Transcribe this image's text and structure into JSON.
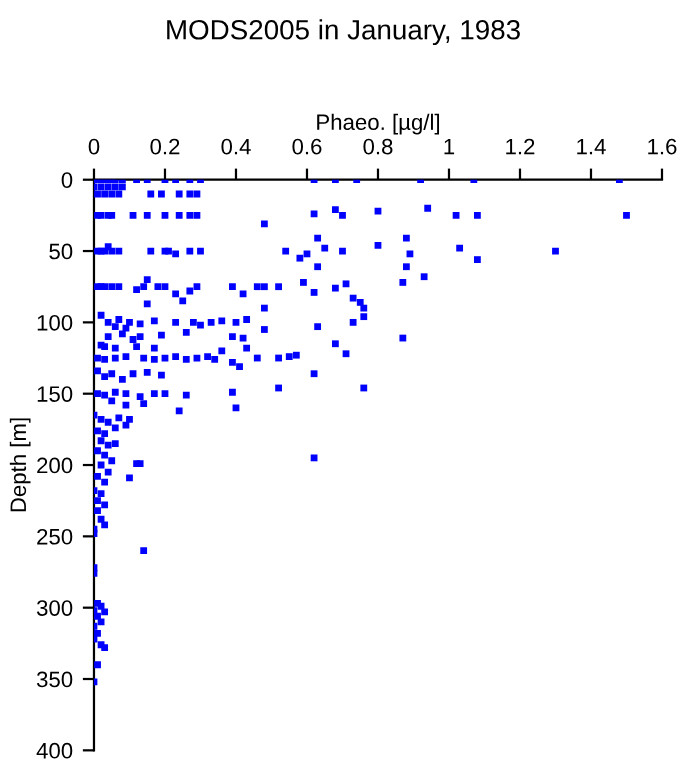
{
  "chart_data": {
    "type": "scatter",
    "title": "MODS2005 in January, 1983",
    "xlabel": "Phaeo. [µg/l]",
    "ylabel": "Depth [m]",
    "xlim": [
      0,
      1.6
    ],
    "xticks": [
      0,
      0.2,
      0.4,
      0.6,
      0.8,
      1,
      1.2,
      1.4,
      1.6
    ],
    "ylim": [
      400,
      0
    ],
    "yticks": [
      0,
      50,
      100,
      150,
      200,
      250,
      300,
      350,
      400
    ],
    "grid": false,
    "legend": false,
    "marker": "square",
    "series": [
      {
        "color": "#0000ff",
        "x": [
          0,
          0.01,
          0.02,
          0.03,
          0.04,
          0.05,
          0.06,
          0.08,
          0.12,
          0.15,
          0.2,
          0.23,
          0.27,
          0.3,
          0.62,
          0.68,
          0.74,
          0.92,
          1.07,
          1.48,
          0,
          0.02,
          0.04,
          0.06,
          0.08,
          0.01,
          0.03,
          0.05,
          0.07,
          0.16,
          0.19,
          0.24,
          0.27,
          0.29,
          0.01,
          0.02,
          0.04,
          0.05,
          0.11,
          0.15,
          0.2,
          0.24,
          0.27,
          0.29,
          0.48,
          0.62,
          0.68,
          0.7,
          0.8,
          0.94,
          1.02,
          1.08,
          1.5,
          0.01,
          0.02,
          0.03,
          0.05,
          0.04,
          0.07,
          0.16,
          0.2,
          0.21,
          0.23,
          0.27,
          0.3,
          0.54,
          0.58,
          0.6,
          0.63,
          0.63,
          0.65,
          0.7,
          0.8,
          0.88,
          0.89,
          0.88,
          1.03,
          1.08,
          1.3,
          0.01,
          0.02,
          0.03,
          0.05,
          0.07,
          0.12,
          0.14,
          0.15,
          0.15,
          0.18,
          0.2,
          0.23,
          0.27,
          0.25,
          0.29,
          0.39,
          0.42,
          0.46,
          0.48,
          0.52,
          0.59,
          0.62,
          0.68,
          0.71,
          0.73,
          0.75,
          0.76,
          0.87,
          0.93,
          0.48,
          0.76,
          0.02,
          0.04,
          0.07,
          0.1,
          0.13,
          0.17,
          0.23,
          0.28,
          0.3,
          0.33,
          0.36,
          0.4,
          0.43,
          0.63,
          0.73,
          0.06,
          0.09,
          0.04,
          0.08,
          0.13,
          0.19,
          0.26,
          0.39,
          0.42,
          0.48,
          0.68,
          0.87,
          0.11,
          0.02,
          0.03,
          0.06,
          0.12,
          0.17,
          0.43,
          0.01,
          0.03,
          0.06,
          0.09,
          0.14,
          0.17,
          0.2,
          0.23,
          0.26,
          0.29,
          0.32,
          0.34,
          0.36,
          0.39,
          0.41,
          0.46,
          0.52,
          0.55,
          0.57,
          0.62,
          0.71,
          0.01,
          0.03,
          0.05,
          0.08,
          0.11,
          0.15,
          0.19,
          0.01,
          0.03,
          0.06,
          0.09,
          0.13,
          0.17,
          0.2,
          0.26,
          0.39,
          0.52,
          0.76,
          0.4,
          0.05,
          0.09,
          0.14,
          0.24,
          0,
          0.02,
          0.04,
          0.07,
          0.1,
          0.01,
          0.03,
          0.06,
          0.09,
          0.02,
          0.04,
          0.06,
          0.01,
          0.03,
          0.05,
          0.12,
          0.13,
          0.1,
          0.62,
          0.02,
          0.04,
          0.01,
          0.03,
          0,
          0.02,
          0.01,
          0.03,
          0.01,
          0.02,
          0.03,
          0,
          0,
          0.14,
          0,
          0,
          0.01,
          0.02,
          0,
          0.03,
          0.01,
          0.02,
          0,
          0.01,
          0,
          0.02,
          0.03,
          0.01,
          0
        ],
        "values": [
          0,
          0,
          0,
          0,
          0,
          0,
          0,
          0,
          0,
          0,
          0,
          0,
          0,
          0,
          0,
          0,
          0,
          0,
          0,
          0,
          5,
          5,
          5,
          5,
          5,
          10,
          10,
          10,
          10,
          10,
          10,
          10,
          10,
          10,
          25,
          25,
          25,
          25,
          25,
          25,
          25,
          25,
          25,
          25,
          31,
          24,
          21,
          25,
          22,
          20,
          25,
          25,
          25,
          50,
          50,
          50,
          50,
          47,
          50,
          50,
          50,
          50,
          52,
          50,
          50,
          50,
          55,
          52,
          61,
          41,
          48,
          50,
          46,
          41,
          52,
          61,
          48,
          56,
          50,
          75,
          75,
          75,
          75,
          75,
          77,
          75,
          70,
          87,
          75,
          75,
          80,
          78,
          85,
          75,
          75,
          80,
          75,
          75,
          75,
          72,
          79,
          76,
          73,
          83,
          86,
          90,
          72,
          68,
          90,
          96,
          95,
          100,
          98,
          100,
          101,
          99,
          100,
          100,
          102,
          100,
          99,
          100,
          98,
          103,
          100,
          103,
          104,
          110,
          108,
          110,
          109,
          107,
          110,
          111,
          105,
          115,
          111,
          112,
          116,
          117,
          118,
          117,
          118,
          118,
          125,
          126,
          125,
          124,
          125,
          126,
          125,
          124,
          126,
          125,
          124,
          126,
          120,
          128,
          131,
          125,
          125,
          124,
          123,
          136,
          122,
          134,
          138,
          136,
          140,
          136,
          135,
          137,
          150,
          151,
          149,
          150,
          152,
          150,
          150,
          151,
          149,
          146,
          146,
          160,
          155,
          158,
          157,
          162,
          165,
          168,
          170,
          167,
          168,
          176,
          178,
          174,
          172,
          183,
          186,
          185,
          190,
          193,
          197,
          199,
          199,
          209,
          195,
          200,
          205,
          208,
          212,
          218,
          220,
          225,
          228,
          232,
          238,
          242,
          245,
          248,
          260,
          272,
          276,
          297,
          299,
          302,
          303,
          306,
          310,
          313,
          318,
          322,
          326,
          328,
          340,
          352
        ]
      }
    ]
  }
}
